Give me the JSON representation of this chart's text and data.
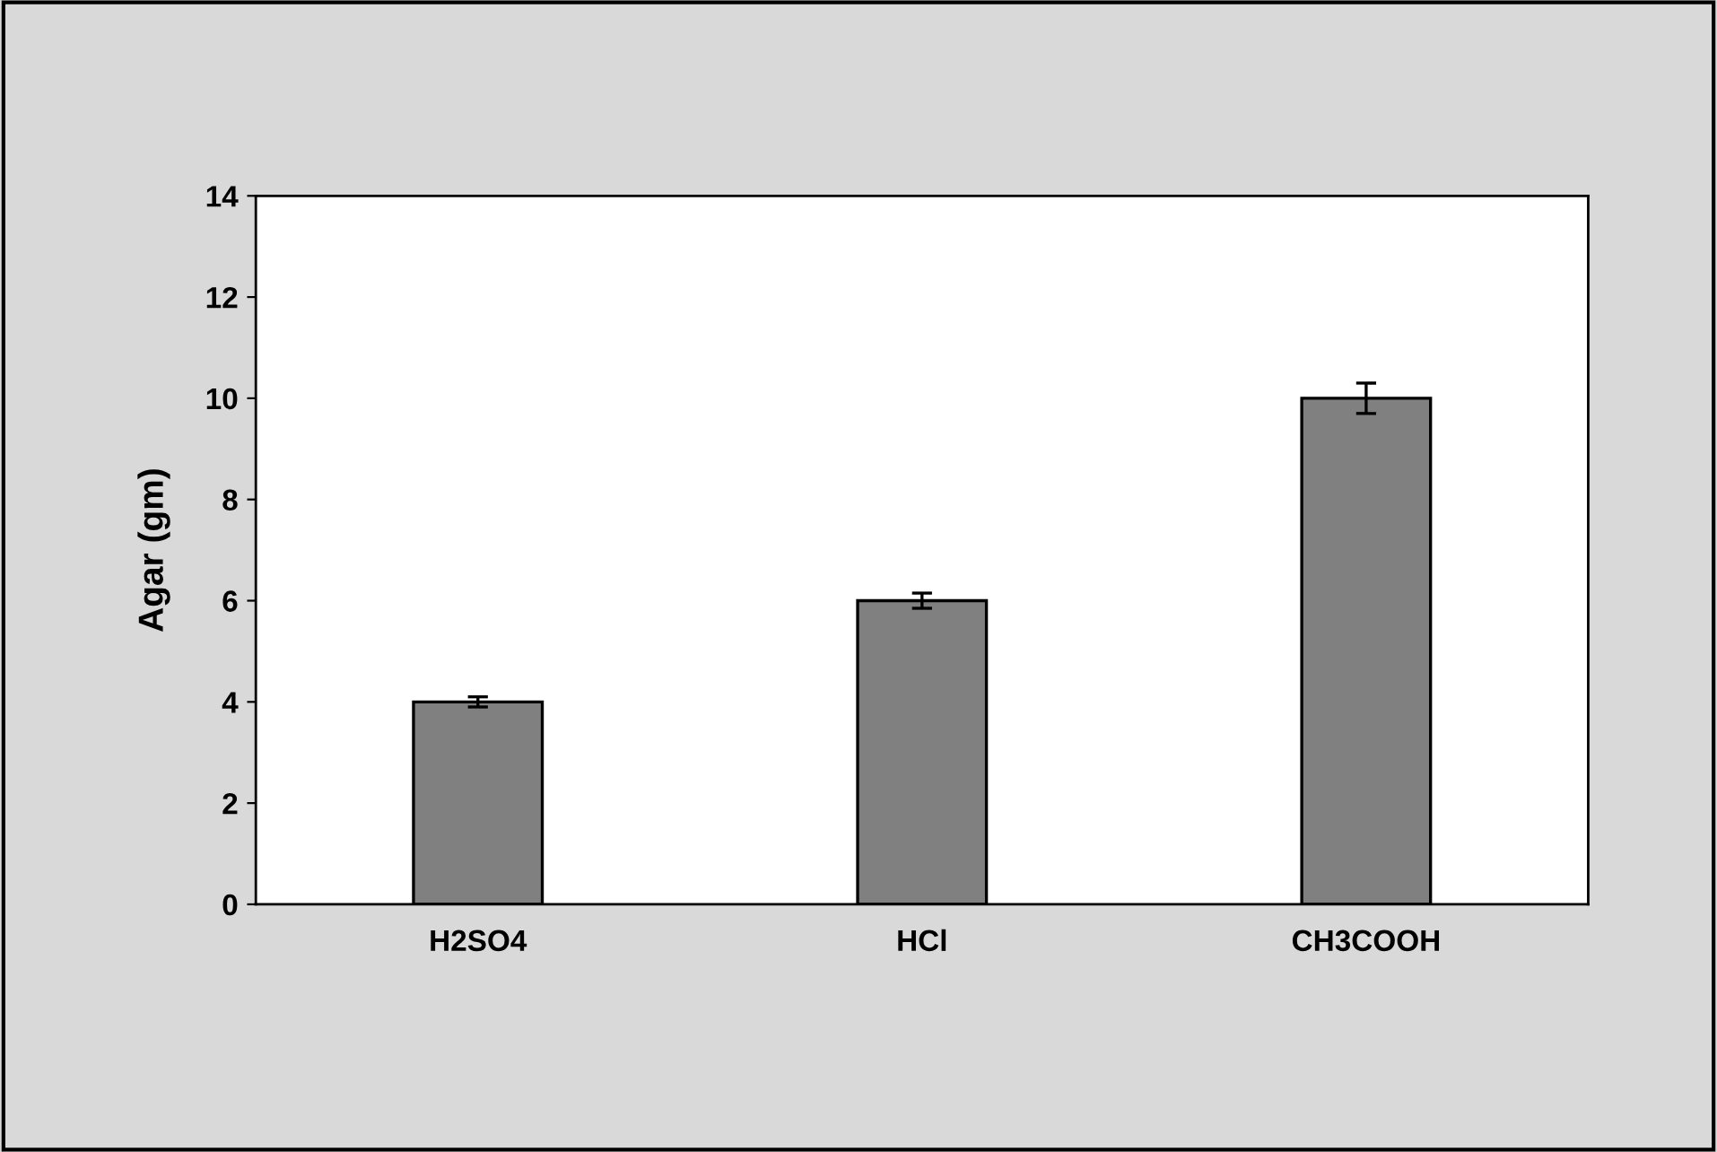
{
  "chart_data": {
    "type": "bar",
    "ylabel": "Agar (gm)",
    "categories": [
      "H2SO4",
      "HCl",
      "CH3COOH"
    ],
    "values": [
      4.0,
      6.0,
      10.0
    ],
    "errors": [
      0.1,
      0.15,
      0.3
    ],
    "color": "#808080",
    "ylim": [
      0,
      14
    ],
    "yticks": [
      0,
      2,
      4,
      6,
      8,
      10,
      12,
      14
    ],
    "grid": false
  }
}
